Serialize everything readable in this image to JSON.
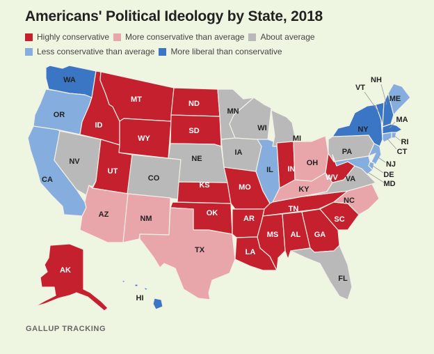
{
  "title": "Americans' Political Ideology by State, 2018",
  "legend": [
    {
      "key": "hc",
      "label": "Highly conservative",
      "color": "#c5202e"
    },
    {
      "key": "mc",
      "label": "More conservative than average",
      "color": "#e8a6ab"
    },
    {
      "key": "av",
      "label": "About average",
      "color": "#b9b9b9"
    },
    {
      "key": "lc",
      "label": "Less conservative than average",
      "color": "#85aedf"
    },
    {
      "key": "ml",
      "label": "More liberal than conservative",
      "color": "#3a76c4"
    }
  ],
  "footer": "GALLUP TRACKING",
  "chart_data": {
    "type": "choropleth",
    "title": "Americans' Political Ideology by State, 2018",
    "source": "GALLUP TRACKING",
    "categories": [
      "Highly conservative",
      "More conservative than average",
      "About average",
      "Less conservative than average",
      "More liberal than conservative"
    ],
    "states": {
      "WA": "More liberal than conservative",
      "OR": "Less conservative than average",
      "CA": "Less conservative than average",
      "NV": "About average",
      "ID": "Highly conservative",
      "MT": "Highly conservative",
      "WY": "Highly conservative",
      "UT": "Highly conservative",
      "CO": "About average",
      "AZ": "More conservative than average",
      "NM": "More conservative than average",
      "ND": "Highly conservative",
      "SD": "Highly conservative",
      "NE": "About average",
      "KS": "Highly conservative",
      "OK": "Highly conservative",
      "TX": "More conservative than average",
      "MN": "About average",
      "IA": "About average",
      "MO": "Highly conservative",
      "AR": "Highly conservative",
      "LA": "Highly conservative",
      "WI": "About average",
      "IL": "Less conservative than average",
      "MI": "About average",
      "IN": "Highly conservative",
      "OH": "More conservative than average",
      "KY": "More conservative than average",
      "TN": "Highly conservative",
      "MS": "Highly conservative",
      "AL": "Highly conservative",
      "GA": "Highly conservative",
      "FL": "About average",
      "SC": "Highly conservative",
      "NC": "More conservative than average",
      "VA": "About average",
      "WV": "Highly conservative",
      "PA": "About average",
      "NY": "More liberal than conservative",
      "VT": "More liberal than conservative",
      "NH": "More liberal than conservative",
      "ME": "Less conservative than average",
      "MA": "More liberal than conservative",
      "RI": "Less conservative than average",
      "CT": "Less conservative than average",
      "NJ": "Less conservative than average",
      "DE": "Less conservative than average",
      "MD": "Less conservative than average",
      "AK": "Highly conservative",
      "HI": "More liberal than conservative"
    }
  }
}
